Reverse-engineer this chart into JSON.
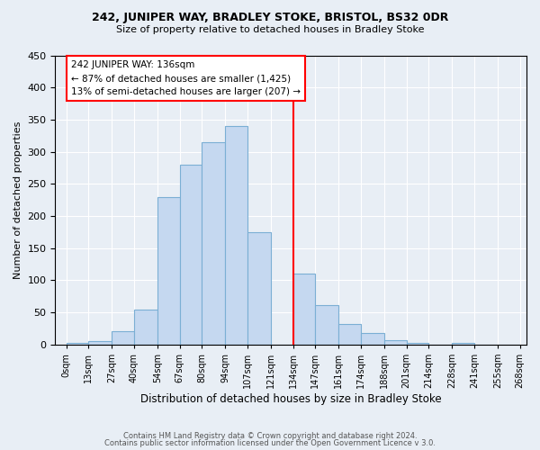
{
  "title1": "242, JUNIPER WAY, BRADLEY STOKE, BRISTOL, BS32 0DR",
  "title2": "Size of property relative to detached houses in Bradley Stoke",
  "xlabel": "Distribution of detached houses by size in Bradley Stoke",
  "ylabel": "Number of detached properties",
  "footer1": "Contains HM Land Registry data © Crown copyright and database right 2024.",
  "footer2": "Contains public sector information licensed under the Open Government Licence v 3.0.",
  "bin_edges": [
    0,
    13,
    27,
    40,
    54,
    67,
    80,
    94,
    107,
    121,
    134,
    147,
    161,
    174,
    188,
    201,
    214,
    228,
    241,
    255,
    268
  ],
  "tick_labels": [
    "0sqm",
    "13sqm",
    "27sqm",
    "40sqm",
    "54sqm",
    "67sqm",
    "80sqm",
    "94sqm",
    "107sqm",
    "121sqm",
    "134sqm",
    "147sqm",
    "161sqm",
    "174sqm",
    "188sqm",
    "201sqm",
    "214sqm",
    "228sqm",
    "241sqm",
    "255sqm",
    "268sqm"
  ],
  "bar_values": [
    2,
    6,
    21,
    55,
    230,
    280,
    315,
    340,
    175,
    0,
    110,
    62,
    32,
    18,
    7,
    2,
    0,
    2,
    0,
    0
  ],
  "bar_color": "#c5d8f0",
  "bar_edge_color": "#7bafd4",
  "vline_x": 134,
  "vline_color": "red",
  "annotation_title": "242 JUNIPER WAY: 136sqm",
  "annotation_line1": "← 87% of detached houses are smaller (1,425)",
  "annotation_line2": "13% of semi-detached houses are larger (207) →",
  "ylim": [
    0,
    450
  ],
  "yticks": [
    0,
    50,
    100,
    150,
    200,
    250,
    300,
    350,
    400,
    450
  ],
  "background_color": "#e8eef5",
  "plot_background": "#e8eef5"
}
